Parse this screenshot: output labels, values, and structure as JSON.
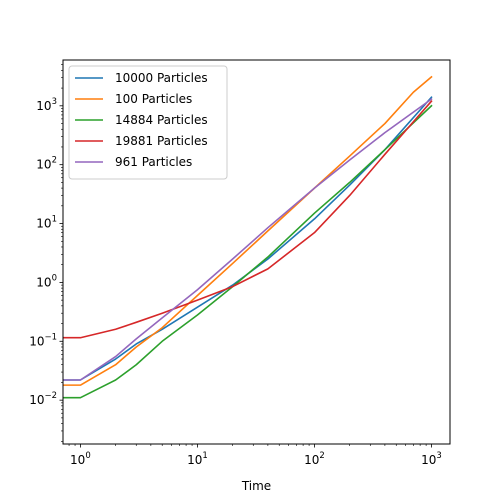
{
  "chart_data": {
    "type": "line",
    "title": "",
    "xlabel": "Time",
    "ylabel": "",
    "xscale": "log",
    "yscale": "log",
    "xlim": [
      0.71,
      1440
    ],
    "ylim": [
      0.0018,
      6000
    ],
    "grid": false,
    "legend_position": "top-left",
    "x_ticks": [
      {
        "value": 1,
        "base": "10",
        "exp": "0"
      },
      {
        "value": 10,
        "base": "10",
        "exp": "1"
      },
      {
        "value": 100,
        "base": "10",
        "exp": "2"
      },
      {
        "value": 1000,
        "base": "10",
        "exp": "3"
      }
    ],
    "y_ticks": [
      {
        "value": 0.01,
        "base": "10",
        "exp": "−2"
      },
      {
        "value": 0.1,
        "base": "10",
        "exp": "−1"
      },
      {
        "value": 1,
        "base": "10",
        "exp": "0"
      },
      {
        "value": 10,
        "base": "10",
        "exp": "1"
      },
      {
        "value": 100,
        "base": "10",
        "exp": "2"
      },
      {
        "value": 1000,
        "base": "10",
        "exp": "3"
      }
    ],
    "series": [
      {
        "name": "10000 Particles",
        "color": "#1f77b4",
        "points": [
          [
            0.7,
            0.022
          ],
          [
            1,
            0.022
          ],
          [
            2,
            0.05
          ],
          [
            3,
            0.09
          ],
          [
            5,
            0.16
          ],
          [
            10,
            0.38
          ],
          [
            20,
            0.9
          ],
          [
            40,
            2.5
          ],
          [
            100,
            12
          ],
          [
            200,
            45
          ],
          [
            400,
            180
          ],
          [
            1000,
            1400
          ]
        ]
      },
      {
        "name": "100 Particles",
        "color": "#ff7f0e",
        "points": [
          [
            0.7,
            0.018
          ],
          [
            1,
            0.018
          ],
          [
            2,
            0.04
          ],
          [
            3,
            0.08
          ],
          [
            5,
            0.17
          ],
          [
            10,
            0.6
          ],
          [
            20,
            2.1
          ],
          [
            40,
            7.5
          ],
          [
            100,
            40
          ],
          [
            200,
            140
          ],
          [
            400,
            500
          ],
          [
            700,
            1700
          ],
          [
            1000,
            3100
          ]
        ]
      },
      {
        "name": "14884 Particles",
        "color": "#2ca02c",
        "points": [
          [
            0.7,
            0.011
          ],
          [
            1,
            0.011
          ],
          [
            2,
            0.022
          ],
          [
            3,
            0.04
          ],
          [
            5,
            0.1
          ],
          [
            10,
            0.28
          ],
          [
            20,
            0.85
          ],
          [
            40,
            2.7
          ],
          [
            100,
            15
          ],
          [
            200,
            50
          ],
          [
            400,
            180
          ],
          [
            1000,
            1000
          ]
        ]
      },
      {
        "name": "19881 Particles",
        "color": "#d62728",
        "points": [
          [
            0.7,
            0.115
          ],
          [
            1,
            0.115
          ],
          [
            2,
            0.16
          ],
          [
            3,
            0.21
          ],
          [
            5,
            0.3
          ],
          [
            10,
            0.5
          ],
          [
            20,
            0.85
          ],
          [
            40,
            1.7
          ],
          [
            100,
            7
          ],
          [
            200,
            30
          ],
          [
            400,
            150
          ],
          [
            1000,
            1200
          ]
        ]
      },
      {
        "name": "961 Particles",
        "color": "#9467bd",
        "points": [
          [
            0.7,
            0.022
          ],
          [
            1,
            0.022
          ],
          [
            2,
            0.055
          ],
          [
            3,
            0.11
          ],
          [
            5,
            0.25
          ],
          [
            10,
            0.75
          ],
          [
            20,
            2.5
          ],
          [
            40,
            8.5
          ],
          [
            100,
            40
          ],
          [
            200,
            120
          ],
          [
            400,
            350
          ],
          [
            1000,
            1300
          ]
        ]
      }
    ]
  }
}
